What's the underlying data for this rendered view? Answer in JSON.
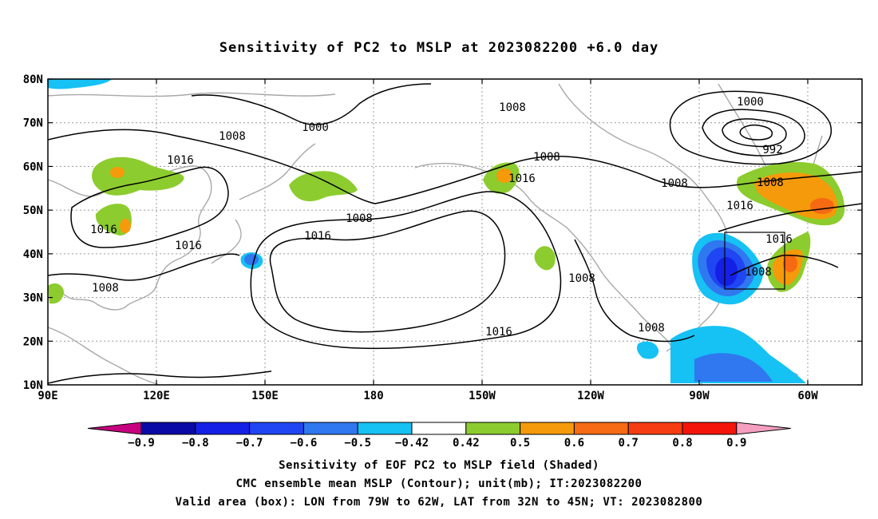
{
  "title": "Sensitivity of PC2 to MSLP at 2023082200 +6.0 day",
  "map": {
    "lat_labels": [
      "80N",
      "70N",
      "60N",
      "50N",
      "40N",
      "30N",
      "20N",
      "10N"
    ],
    "lon_labels": [
      "90E",
      "120E",
      "150E",
      "180",
      "150W",
      "120W",
      "90W",
      "60W"
    ],
    "contour_labels": [
      "1000",
      "992",
      "1008",
      "1016"
    ],
    "contour_unit": "mb",
    "valid_box": {
      "lon_from": "79W",
      "lon_to": "62W",
      "lat_from": "32N",
      "lat_to": "45N"
    }
  },
  "colorbar": {
    "labels": [
      "-0.9",
      "-0.8",
      "-0.7",
      "-0.6",
      "-0.5",
      "-0.42",
      "0.42",
      "0.5",
      "0.6",
      "0.7",
      "0.8",
      "0.9"
    ],
    "colors": [
      "#c6007e",
      "#0a0aa6",
      "#1520e6",
      "#1f46f2",
      "#2f78ef",
      "#16c1f4",
      "#ffffff",
      "#8ccc2e",
      "#f59a0a",
      "#f56a12",
      "#f53c12",
      "#f5140a",
      "#f59ec0"
    ]
  },
  "captions": {
    "line1": "Sensitivity of EOF PC2 to MSLP field (Shaded)",
    "line2": "CMC ensemble mean MSLP (Contour); unit(mb); IT:2023082200",
    "line3": "Valid area (box): LON from 79W to 62W, LAT from 32N to 45N; VT: 2023082800"
  }
}
